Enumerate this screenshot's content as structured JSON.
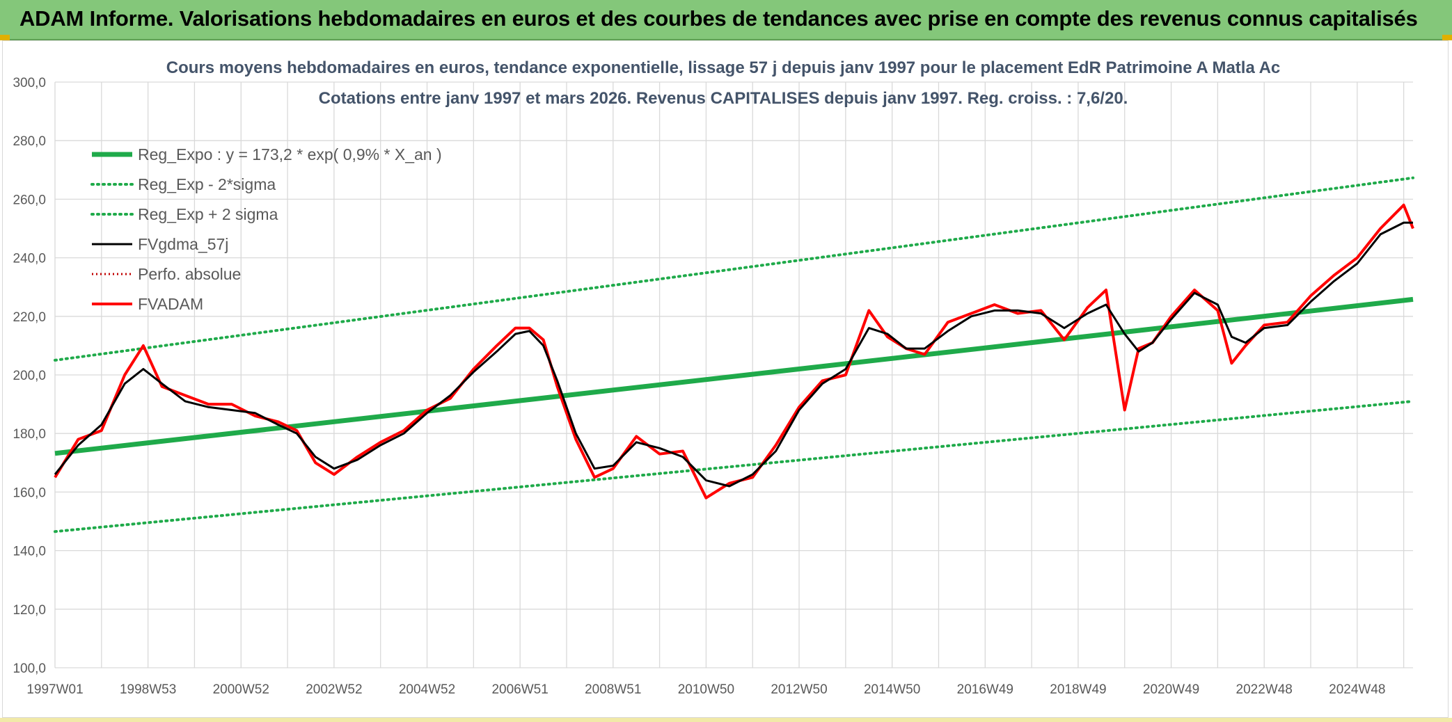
{
  "header": {
    "title": "ADAM Informe. Valorisations hebdomadaires en euros et des courbes de tendances avec prise en compte des revenus connus capitalisés"
  },
  "chart_data": {
    "type": "line",
    "title_line1": "Cours moyens hebdomadaires en euros, tendance exponentielle, lissage 57 j depuis janv 1997 pour le placement EdR Patrimoine A Matla Ac",
    "title_line2": "Cotations entre janv 1997 et mars 2026. Revenus CAPITALISES depuis janv 1997. Reg. croiss. : 7,6/20.",
    "ylim": [
      100,
      300
    ],
    "ytick_values": [
      100,
      120,
      140,
      160,
      180,
      200,
      220,
      240,
      260,
      280,
      300
    ],
    "ytick_labels": [
      "100,0",
      "120,0",
      "140,0",
      "160,0",
      "180,0",
      "200,0",
      "220,0",
      "240,0",
      "260,0",
      "280,0",
      "300,0"
    ],
    "x_range_years": [
      1997.0,
      2026.2
    ],
    "xtick_years": [
      1997.0,
      1999.0,
      2001.0,
      2003.0,
      2005.0,
      2007.0,
      2009.0,
      2011.0,
      2013.0,
      2015.0,
      2017.0,
      2019.0,
      2021.0,
      2023.0,
      2025.0
    ],
    "xtick_labels": [
      "1997W01",
      "1998W53",
      "2000W52",
      "2002W52",
      "2004W52",
      "2006W51",
      "2008W51",
      "2010W50",
      "2012W50",
      "2014W50",
      "2016W49",
      "2018W49",
      "2020W49",
      "2022W48",
      "2024W48"
    ],
    "grid": true,
    "legend_placement": "top-left",
    "colors": {
      "reg_expo": "#1faa4a",
      "sigma_lines": "#1faa4a",
      "fvgdma": "#000000",
      "perfo": "#c00000",
      "fvadam": "#ff0000",
      "grid": "#d9d9d9",
      "axis_text": "#595959",
      "title_text": "#44546a"
    },
    "series": [
      {
        "name": "Reg_Expo : y = 173,2 * exp( 0,9% *  X_an )",
        "style": "solid-thick",
        "x": [
          1997.0,
          2026.2
        ],
        "y": [
          173.2,
          225.8
        ]
      },
      {
        "name": "Reg_Exp - 2*sigma",
        "style": "dotted",
        "x": [
          1997.0,
          2026.2
        ],
        "y": [
          146.5,
          191.0
        ]
      },
      {
        "name": "Reg_Exp + 2 sigma",
        "style": "dotted",
        "x": [
          1997.0,
          2026.2
        ],
        "y": [
          205.0,
          267.3
        ]
      },
      {
        "name": "FVgdma_57j",
        "style": "solid",
        "x": [
          1997.0,
          1997.5,
          1998.0,
          1998.5,
          1998.9,
          1999.3,
          1999.8,
          2000.3,
          2000.8,
          2001.3,
          2001.8,
          2002.2,
          2002.6,
          2003.0,
          2003.5,
          2004.0,
          2004.5,
          2005.0,
          2005.5,
          2006.0,
          2006.5,
          2006.9,
          2007.2,
          2007.5,
          2007.8,
          2008.2,
          2008.6,
          2009.0,
          2009.5,
          2010.0,
          2010.5,
          2011.0,
          2011.5,
          2012.0,
          2012.5,
          2013.0,
          2013.5,
          2014.0,
          2014.5,
          2014.9,
          2015.3,
          2015.7,
          2016.2,
          2016.7,
          2017.2,
          2017.7,
          2018.2,
          2018.7,
          2019.2,
          2019.6,
          2020.0,
          2020.3,
          2020.6,
          2021.0,
          2021.5,
          2022.0,
          2022.3,
          2022.6,
          2023.0,
          2023.5,
          2024.0,
          2024.5,
          2025.0,
          2025.5,
          2026.0,
          2026.2
        ],
        "y": [
          166,
          176,
          183,
          197,
          202,
          197,
          191,
          189,
          188,
          187,
          183,
          180,
          172,
          168,
          171,
          176,
          180,
          187,
          193,
          201,
          208,
          214,
          215,
          210,
          198,
          180,
          168,
          169,
          177,
          175,
          172,
          164,
          162,
          166,
          174,
          188,
          197,
          202,
          216,
          214,
          209,
          209,
          215,
          220,
          222,
          222,
          221,
          216,
          221,
          224,
          214,
          208,
          211,
          219,
          228,
          224,
          213,
          211,
          216,
          217,
          225,
          232,
          238,
          248,
          252,
          252
        ]
      },
      {
        "name": "Perfo. absolue",
        "style": "dotted",
        "x": [],
        "y": []
      },
      {
        "name": "FVADAM",
        "style": "solid-red",
        "x": [
          1997.0,
          1997.5,
          1998.0,
          1998.5,
          1998.9,
          1999.3,
          1999.8,
          2000.3,
          2000.8,
          2001.3,
          2001.8,
          2002.2,
          2002.6,
          2003.0,
          2003.5,
          2004.0,
          2004.5,
          2005.0,
          2005.5,
          2006.0,
          2006.5,
          2006.9,
          2007.2,
          2007.5,
          2007.8,
          2008.2,
          2008.6,
          2009.0,
          2009.5,
          2010.0,
          2010.5,
          2011.0,
          2011.5,
          2012.0,
          2012.5,
          2013.0,
          2013.5,
          2014.0,
          2014.5,
          2014.9,
          2015.3,
          2015.7,
          2016.2,
          2016.7,
          2017.2,
          2017.7,
          2018.2,
          2018.7,
          2019.2,
          2019.6,
          2020.0,
          2020.3,
          2020.6,
          2021.0,
          2021.5,
          2022.0,
          2022.3,
          2022.6,
          2023.0,
          2023.5,
          2024.0,
          2024.5,
          2025.0,
          2025.5,
          2026.0,
          2026.2
        ],
        "y": [
          165,
          178,
          181,
          200,
          210,
          196,
          193,
          190,
          190,
          186,
          184,
          181,
          170,
          166,
          172,
          177,
          181,
          188,
          192,
          202,
          210,
          216,
          216,
          212,
          196,
          178,
          165,
          168,
          179,
          173,
          174,
          158,
          163,
          165,
          176,
          189,
          198,
          200,
          222,
          213,
          209,
          207,
          218,
          221,
          224,
          221,
          222,
          212,
          223,
          229,
          188,
          209,
          211,
          220,
          229,
          222,
          204,
          210,
          217,
          218,
          227,
          234,
          240,
          250,
          258,
          250
        ]
      }
    ]
  }
}
